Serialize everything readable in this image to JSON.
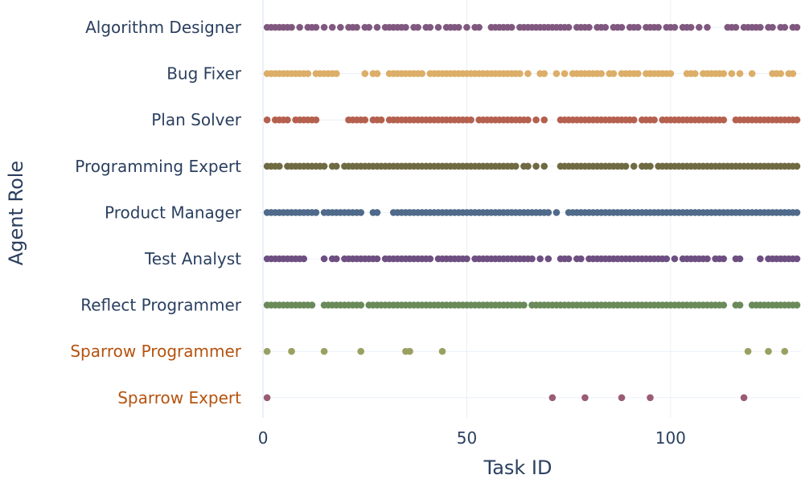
{
  "chart_data": {
    "type": "scatter",
    "xlabel": "Task ID",
    "ylabel": "Agent Role",
    "xlim": [
      -1,
      132
    ],
    "xticks": [
      0,
      50,
      100
    ],
    "grid": true,
    "legend": "none",
    "colors": {
      "text": "#2a3f5f",
      "highlight_label": "#b5520f",
      "grid": "#ebf0f8"
    },
    "categories": [
      "Algorithm Designer",
      "Bug Fixer",
      "Plan Solver",
      "Programming Expert",
      "Product Manager",
      "Test Analyst",
      "Reflect Programmer",
      "Sparrow Programmer",
      "Sparrow Expert"
    ],
    "series": [
      {
        "category": "Algorithm Designer",
        "color": "#80587f",
        "label_color": "#2a3f5f",
        "x": [
          1,
          2,
          3,
          4,
          5,
          6,
          7,
          9,
          11,
          12,
          13,
          15,
          17,
          19,
          21,
          22,
          23,
          25,
          26,
          28,
          30,
          31,
          32,
          33,
          34,
          35,
          37,
          38,
          40,
          41,
          43,
          45,
          46,
          47,
          48,
          50,
          52,
          53,
          56,
          57,
          58,
          59,
          60,
          61,
          63,
          64,
          65,
          66,
          67,
          68,
          69,
          70,
          71,
          72,
          73,
          74,
          75,
          77,
          78,
          79,
          80,
          82,
          83,
          84,
          86,
          87,
          88,
          90,
          91,
          92,
          94,
          95,
          96,
          97,
          99,
          100,
          101,
          103,
          104,
          105,
          107,
          109,
          114,
          115,
          116,
          118,
          119,
          120,
          121,
          122,
          124,
          125,
          127,
          128,
          130,
          131
        ]
      },
      {
        "category": "Bug Fixer",
        "color": "#dcae68",
        "label_color": "#2a3f5f",
        "x": [
          1,
          2,
          3,
          4,
          5,
          6,
          7,
          8,
          9,
          10,
          11,
          13,
          14,
          15,
          16,
          17,
          18,
          25,
          27,
          28,
          31,
          32,
          33,
          34,
          35,
          36,
          37,
          38,
          39,
          41,
          42,
          43,
          44,
          45,
          46,
          47,
          48,
          49,
          50,
          51,
          52,
          53,
          54,
          55,
          56,
          57,
          58,
          59,
          60,
          61,
          62,
          63,
          65,
          68,
          69,
          72,
          74,
          76,
          77,
          78,
          79,
          80,
          81,
          82,
          83,
          85,
          86,
          88,
          89,
          90,
          91,
          92,
          94,
          95,
          96,
          97,
          98,
          99,
          100,
          104,
          105,
          106,
          108,
          109,
          110,
          111,
          112,
          113,
          115,
          117,
          120,
          125,
          126,
          127,
          129,
          130
        ]
      },
      {
        "category": "Plan Solver",
        "color": "#b5604e",
        "label_color": "#2a3f5f",
        "x": [
          1,
          3,
          4,
          5,
          6,
          8,
          9,
          10,
          11,
          12,
          13,
          21,
          22,
          23,
          24,
          25,
          27,
          28,
          29,
          31,
          32,
          33,
          34,
          35,
          36,
          37,
          38,
          39,
          40,
          41,
          42,
          43,
          44,
          45,
          46,
          47,
          48,
          49,
          50,
          51,
          53,
          54,
          55,
          56,
          57,
          58,
          59,
          60,
          61,
          62,
          63,
          64,
          65,
          67,
          69,
          73,
          74,
          75,
          76,
          77,
          78,
          79,
          80,
          81,
          82,
          83,
          84,
          85,
          86,
          87,
          88,
          89,
          90,
          91,
          93,
          94,
          95,
          96,
          98,
          99,
          100,
          101,
          102,
          103,
          104,
          105,
          106,
          107,
          108,
          109,
          110,
          111,
          112,
          113,
          116,
          117,
          118,
          119,
          120,
          121,
          122,
          123,
          124,
          125,
          126,
          127,
          128,
          129,
          130,
          131
        ]
      },
      {
        "category": "Programming Expert",
        "color": "#6f6a42",
        "label_color": "#2a3f5f",
        "x": [
          1,
          2,
          3,
          4,
          6,
          7,
          8,
          9,
          10,
          11,
          12,
          13,
          14,
          15,
          17,
          18,
          20,
          21,
          22,
          23,
          24,
          25,
          26,
          27,
          28,
          29,
          30,
          31,
          32,
          33,
          34,
          35,
          36,
          37,
          38,
          39,
          40,
          41,
          42,
          43,
          44,
          45,
          46,
          47,
          48,
          49,
          50,
          51,
          52,
          53,
          54,
          55,
          56,
          57,
          58,
          59,
          60,
          61,
          62,
          64,
          65,
          67,
          69,
          73,
          74,
          75,
          76,
          77,
          78,
          79,
          80,
          81,
          82,
          83,
          84,
          85,
          86,
          87,
          88,
          89,
          91,
          93,
          94,
          95,
          97,
          98,
          99,
          100,
          101,
          102,
          103,
          104,
          105,
          106,
          107,
          108,
          109,
          110,
          111,
          112,
          113,
          114,
          115,
          116,
          117,
          118,
          119,
          120,
          121,
          122,
          123,
          124,
          125,
          126,
          127,
          128,
          129,
          130,
          131
        ]
      },
      {
        "category": "Product Manager",
        "color": "#4f6a8a",
        "label_color": "#2a3f5f",
        "x": [
          1,
          2,
          3,
          4,
          5,
          6,
          7,
          8,
          9,
          10,
          11,
          12,
          13,
          15,
          16,
          17,
          18,
          19,
          20,
          21,
          22,
          23,
          24,
          27,
          28,
          32,
          33,
          34,
          35,
          36,
          37,
          38,
          39,
          40,
          41,
          42,
          43,
          44,
          45,
          46,
          47,
          48,
          49,
          50,
          51,
          52,
          53,
          54,
          55,
          56,
          57,
          58,
          59,
          60,
          61,
          62,
          63,
          64,
          65,
          66,
          67,
          68,
          69,
          70,
          72,
          75,
          76,
          77,
          78,
          79,
          80,
          81,
          82,
          83,
          84,
          85,
          86,
          87,
          88,
          89,
          90,
          91,
          92,
          93,
          94,
          95,
          96,
          97,
          98,
          99,
          100,
          101,
          102,
          103,
          104,
          105,
          106,
          107,
          108,
          109,
          110,
          111,
          112,
          113,
          114,
          115,
          116,
          117,
          118,
          119,
          120,
          121,
          122,
          123,
          124,
          125,
          126,
          127,
          128,
          129,
          130,
          131
        ]
      },
      {
        "category": "Test Analyst",
        "color": "#6e4f82",
        "label_color": "#2a3f5f",
        "x": [
          1,
          2,
          3,
          4,
          5,
          6,
          7,
          8,
          9,
          10,
          15,
          17,
          18,
          20,
          21,
          22,
          23,
          24,
          25,
          26,
          27,
          28,
          30,
          31,
          32,
          33,
          34,
          35,
          36,
          37,
          38,
          39,
          40,
          41,
          43,
          44,
          45,
          46,
          47,
          48,
          49,
          50,
          52,
          53,
          54,
          55,
          56,
          57,
          58,
          59,
          60,
          61,
          62,
          63,
          64,
          65,
          66,
          68,
          70,
          73,
          74,
          75,
          77,
          78,
          80,
          81,
          82,
          83,
          84,
          85,
          86,
          87,
          88,
          89,
          90,
          91,
          92,
          93,
          94,
          95,
          96,
          97,
          98,
          99,
          101,
          103,
          104,
          105,
          106,
          107,
          108,
          109,
          111,
          112,
          113,
          116,
          117,
          122,
          124,
          125,
          126,
          127,
          128,
          129,
          130,
          131
        ]
      },
      {
        "category": "Reflect Programmer",
        "color": "#6a8a5a",
        "label_color": "#2a3f5f",
        "x": [
          1,
          2,
          3,
          4,
          5,
          6,
          7,
          8,
          9,
          10,
          11,
          12,
          15,
          16,
          17,
          18,
          19,
          20,
          21,
          22,
          23,
          24,
          26,
          27,
          28,
          29,
          30,
          31,
          32,
          33,
          34,
          35,
          36,
          37,
          38,
          39,
          40,
          41,
          42,
          43,
          44,
          45,
          46,
          47,
          48,
          49,
          50,
          51,
          52,
          53,
          54,
          55,
          56,
          57,
          58,
          59,
          60,
          61,
          62,
          63,
          64,
          66,
          67,
          68,
          69,
          70,
          71,
          72,
          73,
          74,
          75,
          76,
          77,
          78,
          79,
          80,
          81,
          82,
          83,
          84,
          85,
          86,
          87,
          88,
          89,
          90,
          91,
          92,
          93,
          94,
          95,
          96,
          97,
          98,
          99,
          100,
          101,
          102,
          103,
          104,
          105,
          106,
          107,
          108,
          109,
          110,
          111,
          112,
          113,
          116,
          117,
          120,
          121,
          122,
          123,
          124,
          125,
          126,
          127,
          128,
          129,
          130,
          131
        ]
      },
      {
        "category": "Sparrow Programmer",
        "color": "#9aa060",
        "label_color": "#b5520f",
        "x": [
          1,
          7,
          15,
          24,
          35,
          36,
          44,
          119,
          124,
          128
        ]
      },
      {
        "category": "Sparrow Expert",
        "color": "#9a5c74",
        "label_color": "#b5520f",
        "x": [
          1,
          71,
          79,
          88,
          95,
          118
        ]
      }
    ]
  }
}
